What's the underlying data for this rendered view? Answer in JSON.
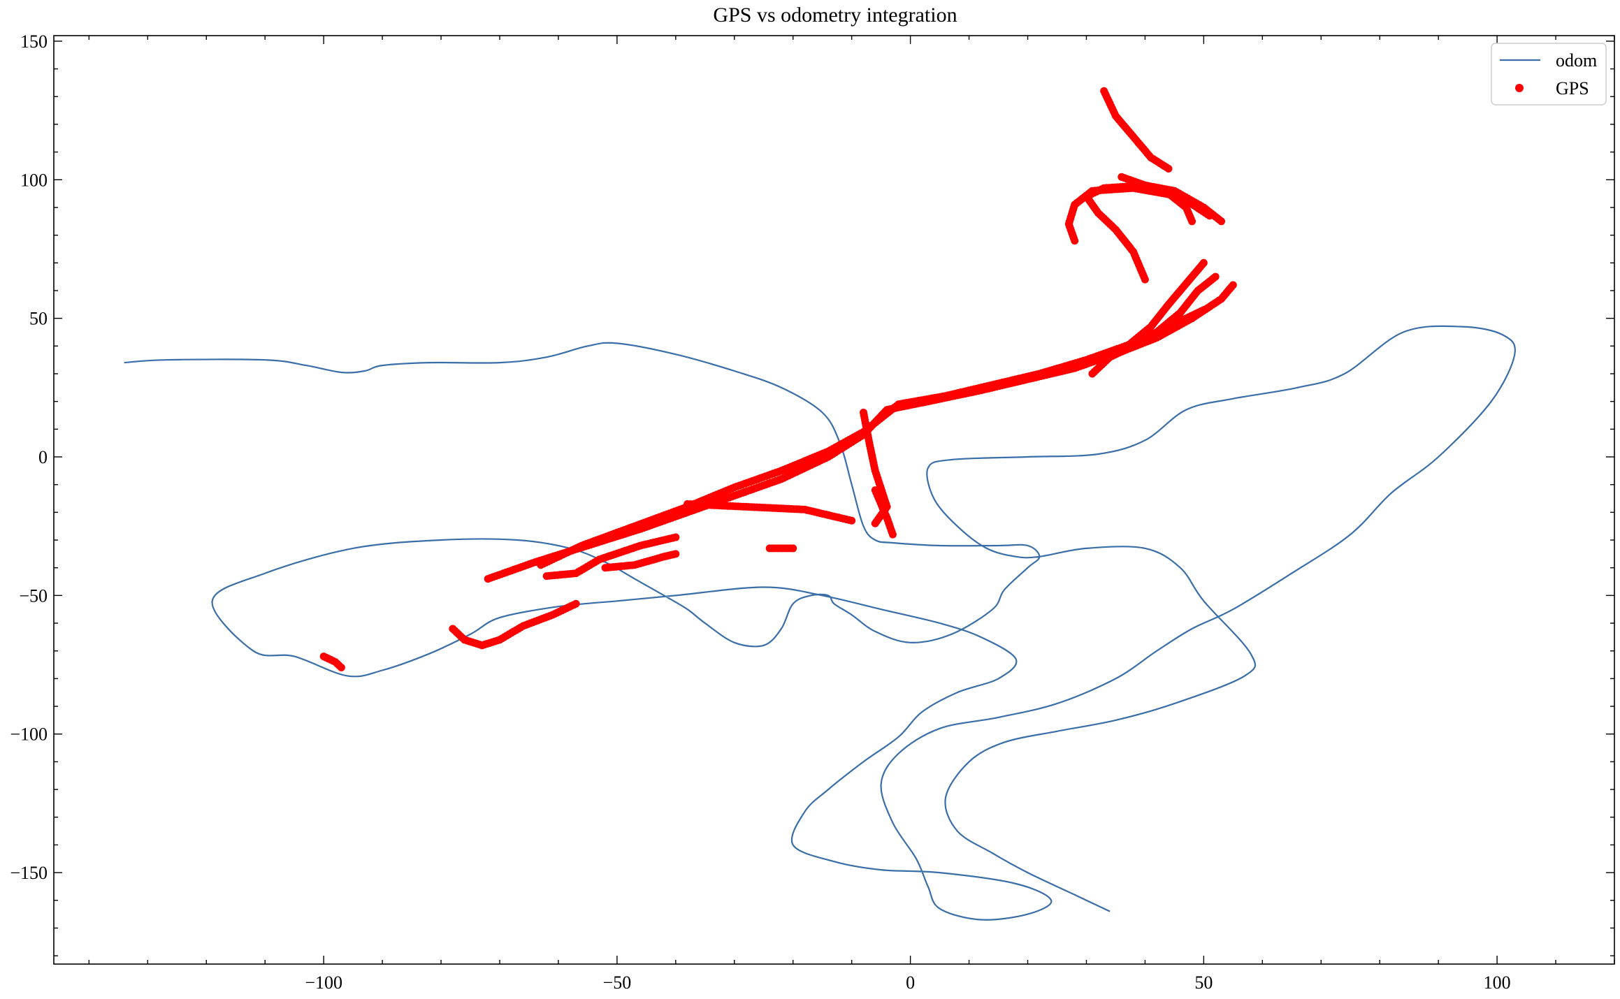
{
  "chart_data": {
    "type": "line",
    "title": "GPS vs odometry integration",
    "xlabel": "",
    "ylabel": "",
    "xlim": [
      -146,
      120
    ],
    "ylim": [
      -183,
      152
    ],
    "x_ticks": [
      -100,
      -50,
      0,
      50,
      100
    ],
    "x_tick_labels": [
      "−100",
      "−50",
      "0",
      "50",
      "100"
    ],
    "y_ticks": [
      -150,
      -100,
      -50,
      0,
      50,
      100,
      150
    ],
    "y_tick_labels": [
      "−150",
      "−100",
      "−50",
      "0",
      "50",
      "100",
      "150"
    ],
    "grid": false,
    "legend_position": "top-right",
    "colors": {
      "odom": "#3a6ea8",
      "gps": "#ff0000"
    },
    "series": [
      {
        "name": "odom",
        "kind": "line",
        "points": [
          [
            -134,
            34
          ],
          [
            -127,
            35
          ],
          [
            -110,
            35
          ],
          [
            -103,
            33
          ],
          [
            -97,
            30.5
          ],
          [
            -93,
            31
          ],
          [
            -90,
            33
          ],
          [
            -82,
            34
          ],
          [
            -70,
            34
          ],
          [
            -62,
            36
          ],
          [
            -55,
            40
          ],
          [
            -50,
            41
          ],
          [
            -40,
            37
          ],
          [
            -30,
            31
          ],
          [
            -22,
            25
          ],
          [
            -15,
            16
          ],
          [
            -12,
            5
          ],
          [
            -10,
            -10
          ],
          [
            -8,
            -25
          ],
          [
            -6,
            -30
          ],
          [
            -3,
            -31
          ],
          [
            5,
            -32
          ],
          [
            15,
            -32
          ],
          [
            20,
            -32
          ],
          [
            22,
            -36
          ],
          [
            20,
            -40
          ],
          [
            16,
            -48
          ],
          [
            14,
            -55
          ],
          [
            7,
            -64
          ],
          [
            0,
            -67
          ],
          [
            -6,
            -63
          ],
          [
            -10,
            -57
          ],
          [
            -13,
            -53
          ],
          [
            -14,
            -50
          ],
          [
            -17,
            -50
          ],
          [
            -20,
            -53
          ],
          [
            -22,
            -62
          ],
          [
            -25,
            -68
          ],
          [
            -30,
            -67
          ],
          [
            -35,
            -60
          ],
          [
            -38,
            -55
          ],
          [
            -42,
            -50
          ],
          [
            -47,
            -44
          ],
          [
            -52,
            -38
          ],
          [
            -58,
            -33
          ],
          [
            -67,
            -30
          ],
          [
            -80,
            -30
          ],
          [
            -95,
            -33
          ],
          [
            -110,
            -42
          ],
          [
            -119,
            -52
          ],
          [
            -112,
            -70
          ],
          [
            -105,
            -72
          ],
          [
            -96,
            -79
          ],
          [
            -90,
            -77
          ],
          [
            -82,
            -71
          ],
          [
            -75,
            -64
          ],
          [
            -70,
            -58
          ],
          [
            -60,
            -54
          ],
          [
            -50,
            -52
          ],
          [
            -40,
            -50
          ],
          [
            -25,
            -47
          ],
          [
            -15,
            -50
          ],
          [
            -5,
            -55
          ],
          [
            5,
            -60
          ],
          [
            12,
            -65
          ],
          [
            18,
            -73
          ],
          [
            15,
            -80
          ],
          [
            8,
            -85
          ],
          [
            2,
            -92
          ],
          [
            -2,
            -101
          ],
          [
            -8,
            -110
          ],
          [
            -14,
            -120
          ],
          [
            -18,
            -128
          ],
          [
            -20,
            -140
          ],
          [
            -13,
            -146
          ],
          [
            -5,
            -149
          ],
          [
            5,
            -150
          ],
          [
            18,
            -154
          ],
          [
            24,
            -160
          ],
          [
            20,
            -165
          ],
          [
            12,
            -167
          ],
          [
            5,
            -163
          ],
          [
            3,
            -155
          ],
          [
            1,
            -145
          ],
          [
            -3,
            -132
          ],
          [
            -5,
            -118
          ],
          [
            -2,
            -107
          ],
          [
            5,
            -98
          ],
          [
            15,
            -94
          ],
          [
            25,
            -89
          ],
          [
            35,
            -80
          ],
          [
            42,
            -70
          ],
          [
            48,
            -62
          ],
          [
            55,
            -55
          ],
          [
            65,
            -42
          ],
          [
            75,
            -28
          ],
          [
            82,
            -13
          ],
          [
            90,
            0
          ],
          [
            99,
            20
          ],
          [
            103,
            37
          ],
          [
            101,
            44
          ],
          [
            94,
            47
          ],
          [
            84,
            45
          ],
          [
            74,
            30
          ],
          [
            66,
            25
          ],
          [
            55,
            21
          ],
          [
            47,
            17
          ],
          [
            40,
            6
          ],
          [
            32,
            1
          ],
          [
            20,
            0
          ],
          [
            7,
            -1
          ],
          [
            3,
            -4
          ],
          [
            4,
            -15
          ],
          [
            8,
            -25
          ],
          [
            13,
            -33
          ],
          [
            18,
            -36
          ],
          [
            22,
            -36
          ],
          [
            30,
            -33
          ],
          [
            40,
            -33
          ],
          [
            46,
            -40
          ],
          [
            50,
            -52
          ],
          [
            58,
            -71
          ],
          [
            57,
            -79
          ],
          [
            45,
            -89
          ],
          [
            35,
            -95
          ],
          [
            25,
            -99
          ],
          [
            16,
            -103
          ],
          [
            10,
            -110
          ],
          [
            6,
            -123
          ],
          [
            8,
            -135
          ],
          [
            14,
            -143
          ],
          [
            20,
            -150
          ],
          [
            28,
            -158
          ],
          [
            34,
            -164
          ]
        ]
      },
      {
        "name": "GPS",
        "kind": "scatter",
        "segments": [
          [
            [
              -100,
              -72
            ],
            [
              -98,
              -74
            ],
            [
              -97,
              -76
            ]
          ],
          [
            [
              -78,
              -62
            ],
            [
              -76,
              -66
            ],
            [
              -73,
              -68
            ],
            [
              -70,
              -66
            ],
            [
              -66,
              -61
            ],
            [
              -61,
              -57
            ],
            [
              -57,
              -53
            ]
          ],
          [
            [
              -72,
              -44
            ],
            [
              -64,
              -38
            ],
            [
              -55,
              -32
            ],
            [
              -46,
              -26
            ],
            [
              -38,
              -20
            ],
            [
              -30,
              -14
            ],
            [
              -22,
              -8
            ],
            [
              -14,
              0
            ],
            [
              -8,
              8
            ],
            [
              -4,
              17
            ],
            [
              3,
              20
            ],
            [
              12,
              24
            ],
            [
              20,
              28
            ],
            [
              28,
              32
            ],
            [
              36,
              38
            ],
            [
              42,
              43
            ],
            [
              48,
              50
            ],
            [
              53,
              57
            ],
            [
              55,
              62
            ]
          ],
          [
            [
              -63,
              -39
            ],
            [
              -56,
              -32
            ],
            [
              -47,
              -25
            ],
            [
              -38,
              -18
            ],
            [
              -30,
              -11
            ],
            [
              -22,
              -5
            ],
            [
              -14,
              2
            ],
            [
              -8,
              9
            ],
            [
              -2,
              19
            ],
            [
              6,
              22
            ],
            [
              14,
              26
            ],
            [
              22,
              30
            ],
            [
              30,
              35
            ],
            [
              38,
              41
            ],
            [
              44,
              47
            ],
            [
              50,
              53
            ]
          ],
          [
            [
              -62,
              -43
            ],
            [
              -57,
              -42
            ],
            [
              -53,
              -37
            ],
            [
              -46,
              -32
            ],
            [
              -40,
              -29
            ]
          ],
          [
            [
              -52,
              -40
            ],
            [
              -47,
              -39
            ],
            [
              -42,
              -36
            ],
            [
              -40,
              -35
            ]
          ],
          [
            [
              -38,
              -17
            ],
            [
              -28,
              -18
            ],
            [
              -18,
              -19
            ],
            [
              -10,
              -23
            ]
          ],
          [
            [
              -8,
              16
            ],
            [
              -7,
              5
            ],
            [
              -6,
              -5
            ],
            [
              -4,
              -18
            ],
            [
              -6,
              -24
            ]
          ],
          [
            [
              -6,
              -12
            ],
            [
              -4,
              -22
            ],
            [
              -3,
              -28
            ]
          ],
          [
            [
              -24,
              -33
            ],
            [
              -20,
              -33
            ]
          ],
          [
            [
              31,
              30
            ],
            [
              34,
              36
            ],
            [
              38,
              40
            ],
            [
              42,
              45
            ],
            [
              46,
              52
            ],
            [
              49,
              60
            ],
            [
              52,
              65
            ]
          ],
          [
            [
              33,
              35
            ],
            [
              37,
              40
            ],
            [
              41,
              47
            ],
            [
              44,
              55
            ],
            [
              46,
              60
            ],
            [
              48,
              65
            ],
            [
              50,
              70
            ]
          ],
          [
            [
              40,
              64
            ],
            [
              38,
              74
            ],
            [
              35,
              82
            ],
            [
              32,
              88
            ],
            [
              30,
              94
            ],
            [
              33,
              97
            ],
            [
              40,
              98
            ],
            [
              44,
              95
            ],
            [
              47,
              90
            ],
            [
              48,
              85
            ]
          ],
          [
            [
              28,
              78
            ],
            [
              27,
              84
            ],
            [
              28,
              91
            ],
            [
              31,
              96
            ],
            [
              38,
              97
            ],
            [
              46,
              94
            ],
            [
              51,
              87
            ]
          ],
          [
            [
              33,
              132
            ],
            [
              35,
              123
            ],
            [
              37,
              118
            ],
            [
              41,
              108
            ],
            [
              44,
              104
            ]
          ],
          [
            [
              36,
              101
            ],
            [
              40,
              98
            ],
            [
              45,
              96
            ],
            [
              50,
              90
            ],
            [
              53,
              85
            ]
          ]
        ]
      }
    ]
  }
}
